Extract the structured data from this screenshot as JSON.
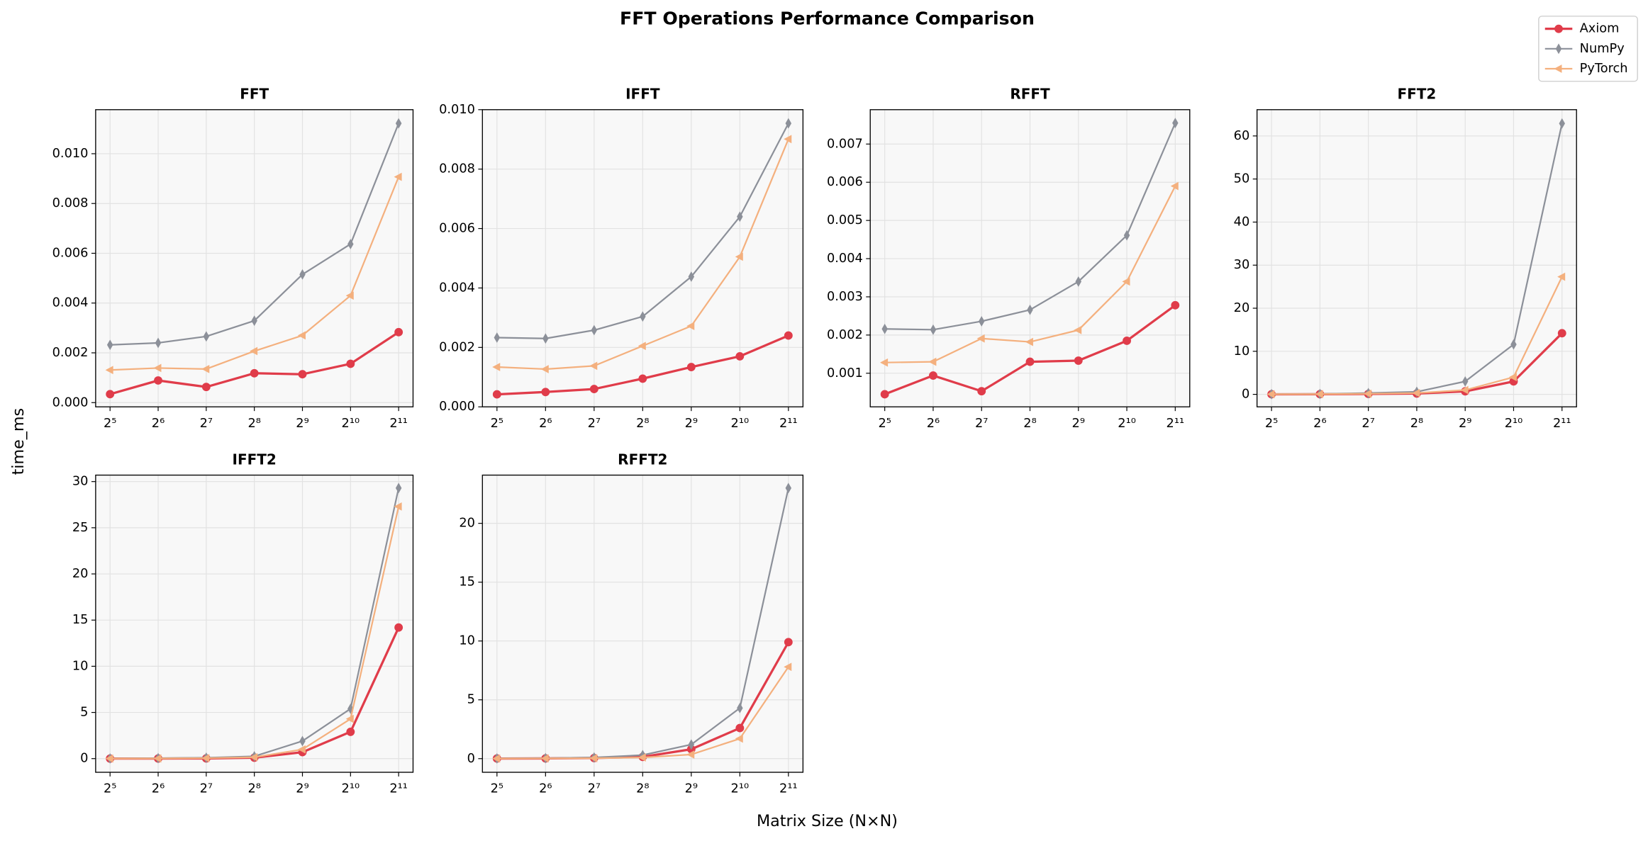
{
  "title": "FFT Operations Performance Comparison",
  "xlabel": "Matrix Size (N×N)",
  "ylabel": "time_ms",
  "legend_position": "upper right",
  "chart_data": [
    {
      "type": "line",
      "title": "FFT",
      "xscale": "log2",
      "grid": true,
      "background": "#f8f8f8",
      "x": [
        32,
        64,
        128,
        256,
        512,
        1024,
        2048
      ],
      "xlim": [
        26,
        2521
      ],
      "xticks": [
        {
          "value": 32,
          "label": "2⁵"
        },
        {
          "value": 64,
          "label": "2⁶"
        },
        {
          "value": 128,
          "label": "2⁷"
        },
        {
          "value": 256,
          "label": "2⁸"
        },
        {
          "value": 512,
          "label": "2⁹"
        },
        {
          "value": 1024,
          "label": "2¹⁰"
        },
        {
          "value": 2048,
          "label": "2¹¹"
        }
      ],
      "ylim": [
        -0.00017,
        0.01177
      ],
      "yticks": [
        {
          "value": 0,
          "label": "0.000"
        },
        0.002,
        0.004,
        0.006,
        0.008,
        {
          "value": 0.01,
          "label": "0.010"
        }
      ],
      "series": [
        {
          "name": "Axiom",
          "color": "#e03c4a",
          "marker": "circle",
          "linewidth": 2.2,
          "values": [
            0.00034,
            0.00089,
            0.00063,
            0.00118,
            0.00114,
            0.00156,
            0.00283
          ]
        },
        {
          "name": "NumPy",
          "color": "#8c9099",
          "marker": "thin_diamond",
          "linewidth": 1.5,
          "values": [
            0.00232,
            0.0024,
            0.00266,
            0.00329,
            0.00515,
            0.00637,
            0.01122
          ]
        },
        {
          "name": "PyTorch",
          "color": "#f4b07e",
          "marker": "triangle_left",
          "linewidth": 1.5,
          "values": [
            0.00131,
            0.00139,
            0.00135,
            0.00207,
            0.0027,
            0.0043,
            0.00907
          ]
        }
      ]
    },
    {
      "type": "line",
      "title": "IFFT",
      "xscale": "log2",
      "grid": true,
      "background": "#f8f8f8",
      "x": [
        32,
        64,
        128,
        256,
        512,
        1024,
        2048
      ],
      "xlim": [
        26,
        2521
      ],
      "xticks": [
        {
          "value": 32,
          "label": "2⁵"
        },
        {
          "value": 64,
          "label": "2⁶"
        },
        {
          "value": 128,
          "label": "2⁷"
        },
        {
          "value": 256,
          "label": "2⁸"
        },
        {
          "value": 512,
          "label": "2⁹"
        },
        {
          "value": 1024,
          "label": "2¹⁰"
        },
        {
          "value": 2048,
          "label": "2¹¹"
        }
      ],
      "ylim": [
        0,
        0.01
      ],
      "yticks": [
        {
          "value": 0,
          "label": "0.000"
        },
        0.002,
        0.004,
        0.006,
        0.008,
        {
          "value": 0.01,
          "label": "0.010"
        }
      ],
      "series": [
        {
          "name": "Axiom",
          "color": "#e03c4a",
          "marker": "circle",
          "linewidth": 2.2,
          "values": [
            0.00042,
            0.0005,
            0.0006,
            0.00095,
            0.00134,
            0.0017,
            0.0024
          ]
        },
        {
          "name": "NumPy",
          "color": "#8c9099",
          "marker": "thin_diamond",
          "linewidth": 1.5,
          "values": [
            0.00233,
            0.0023,
            0.00258,
            0.00304,
            0.00438,
            0.0064,
            0.00954
          ]
        },
        {
          "name": "PyTorch",
          "color": "#f4b07e",
          "marker": "triangle_left",
          "linewidth": 1.5,
          "values": [
            0.00134,
            0.00127,
            0.00138,
            0.00205,
            0.00272,
            0.00505,
            0.00901
          ]
        }
      ]
    },
    {
      "type": "line",
      "title": "RFFT",
      "xscale": "log2",
      "grid": true,
      "background": "#f8f8f8",
      "x": [
        32,
        64,
        128,
        256,
        512,
        1024,
        2048
      ],
      "xlim": [
        26,
        2521
      ],
      "xticks": [
        {
          "value": 32,
          "label": "2⁵"
        },
        {
          "value": 64,
          "label": "2⁶"
        },
        {
          "value": 128,
          "label": "2⁷"
        },
        {
          "value": 256,
          "label": "2⁸"
        },
        {
          "value": 512,
          "label": "2⁹"
        },
        {
          "value": 1024,
          "label": "2¹⁰"
        },
        {
          "value": 2048,
          "label": "2¹¹"
        }
      ],
      "ylim": [
        0.00012,
        0.0079
      ],
      "yticks": [
        0.001,
        0.002,
        0.003,
        0.004,
        0.005,
        0.006,
        0.007
      ],
      "series": [
        {
          "name": "Axiom",
          "color": "#e03c4a",
          "marker": "circle",
          "linewidth": 2.2,
          "values": [
            0.00045,
            0.00094,
            0.00053,
            0.0013,
            0.00133,
            0.00185,
            0.00278
          ]
        },
        {
          "name": "NumPy",
          "color": "#8c9099",
          "marker": "thin_diamond",
          "linewidth": 1.5,
          "values": [
            0.00216,
            0.00214,
            0.00236,
            0.00266,
            0.0034,
            0.00461,
            0.00755
          ]
        },
        {
          "name": "PyTorch",
          "color": "#f4b07e",
          "marker": "triangle_left",
          "linewidth": 1.5,
          "values": [
            0.00128,
            0.0013,
            0.00191,
            0.00182,
            0.00213,
            0.0034,
            0.0059
          ]
        }
      ]
    },
    {
      "type": "line",
      "title": "FFT2",
      "xscale": "log2",
      "grid": true,
      "background": "#f8f8f8",
      "x": [
        32,
        64,
        128,
        256,
        512,
        1024,
        2048
      ],
      "xlim": [
        26,
        2521
      ],
      "xticks": [
        {
          "value": 32,
          "label": "2⁵"
        },
        {
          "value": 64,
          "label": "2⁶"
        },
        {
          "value": 128,
          "label": "2⁷"
        },
        {
          "value": 256,
          "label": "2⁸"
        },
        {
          "value": 512,
          "label": "2⁹"
        },
        {
          "value": 1024,
          "label": "2¹⁰"
        },
        {
          "value": 2048,
          "label": "2¹¹"
        }
      ],
      "ylim": [
        -2.9,
        66.1
      ],
      "yticks": [
        0,
        10,
        20,
        30,
        40,
        50,
        60
      ],
      "series": [
        {
          "name": "Axiom",
          "color": "#e03c4a",
          "marker": "circle",
          "linewidth": 2.2,
          "values": [
            0.02,
            0.04,
            0.1,
            0.2,
            0.7,
            3.0,
            14.2
          ]
        },
        {
          "name": "NumPy",
          "color": "#8c9099",
          "marker": "thin_diamond",
          "linewidth": 1.5,
          "values": [
            0.05,
            0.1,
            0.3,
            0.6,
            3.0,
            11.6,
            62.9
          ]
        },
        {
          "name": "PyTorch",
          "color": "#f4b07e",
          "marker": "triangle_left",
          "linewidth": 1.5,
          "values": [
            0.03,
            0.06,
            0.15,
            0.3,
            1.0,
            4.0,
            27.3
          ]
        }
      ]
    },
    {
      "type": "line",
      "title": "IFFT2",
      "xscale": "log2",
      "grid": true,
      "background": "#f8f8f8",
      "x": [
        32,
        64,
        128,
        256,
        512,
        1024,
        2048
      ],
      "xlim": [
        26,
        2521
      ],
      "xticks": [
        {
          "value": 32,
          "label": "2⁵"
        },
        {
          "value": 64,
          "label": "2⁶"
        },
        {
          "value": 128,
          "label": "2⁷"
        },
        {
          "value": 256,
          "label": "2⁸"
        },
        {
          "value": 512,
          "label": "2⁹"
        },
        {
          "value": 1024,
          "label": "2¹⁰"
        },
        {
          "value": 2048,
          "label": "2¹¹"
        }
      ],
      "ylim": [
        -1.48,
        30.7
      ],
      "yticks": [
        0,
        5,
        10,
        15,
        20,
        25,
        30
      ],
      "series": [
        {
          "name": "Axiom",
          "color": "#e03c4a",
          "marker": "circle",
          "linewidth": 2.2,
          "values": [
            0.005,
            0.01,
            0.02,
            0.1,
            0.7,
            2.9,
            14.2
          ]
        },
        {
          "name": "NumPy",
          "color": "#8c9099",
          "marker": "thin_diamond",
          "linewidth": 1.5,
          "values": [
            0.02,
            0.05,
            0.1,
            0.25,
            1.9,
            5.4,
            29.3
          ]
        },
        {
          "name": "PyTorch",
          "color": "#f4b07e",
          "marker": "triangle_left",
          "linewidth": 1.5,
          "values": [
            0.01,
            0.02,
            0.05,
            0.15,
            1.0,
            4.3,
            27.3
          ]
        }
      ]
    },
    {
      "type": "line",
      "title": "RFFT2",
      "xscale": "log2",
      "grid": true,
      "background": "#f8f8f8",
      "x": [
        32,
        64,
        128,
        256,
        512,
        1024,
        2048
      ],
      "xlim": [
        26,
        2521
      ],
      "xticks": [
        {
          "value": 32,
          "label": "2⁵"
        },
        {
          "value": 64,
          "label": "2⁶"
        },
        {
          "value": 128,
          "label": "2⁷"
        },
        {
          "value": 256,
          "label": "2⁸"
        },
        {
          "value": 512,
          "label": "2⁹"
        },
        {
          "value": 1024,
          "label": "2¹⁰"
        },
        {
          "value": 2048,
          "label": "2¹¹"
        }
      ],
      "ylim": [
        -1.16,
        24.1
      ],
      "yticks": [
        0,
        5,
        10,
        15,
        20
      ],
      "series": [
        {
          "name": "Axiom",
          "color": "#e03c4a",
          "marker": "circle",
          "linewidth": 2.2,
          "values": [
            0.01,
            0.02,
            0.05,
            0.15,
            0.8,
            2.6,
            9.9
          ]
        },
        {
          "name": "NumPy",
          "color": "#8c9099",
          "marker": "thin_diamond",
          "linewidth": 1.5,
          "values": [
            0.02,
            0.04,
            0.1,
            0.3,
            1.2,
            4.3,
            23.0
          ]
        },
        {
          "name": "PyTorch",
          "color": "#f4b07e",
          "marker": "triangle_left",
          "linewidth": 1.5,
          "values": [
            0.01,
            0.02,
            0.04,
            0.1,
            0.35,
            1.7,
            7.8
          ]
        }
      ]
    }
  ]
}
